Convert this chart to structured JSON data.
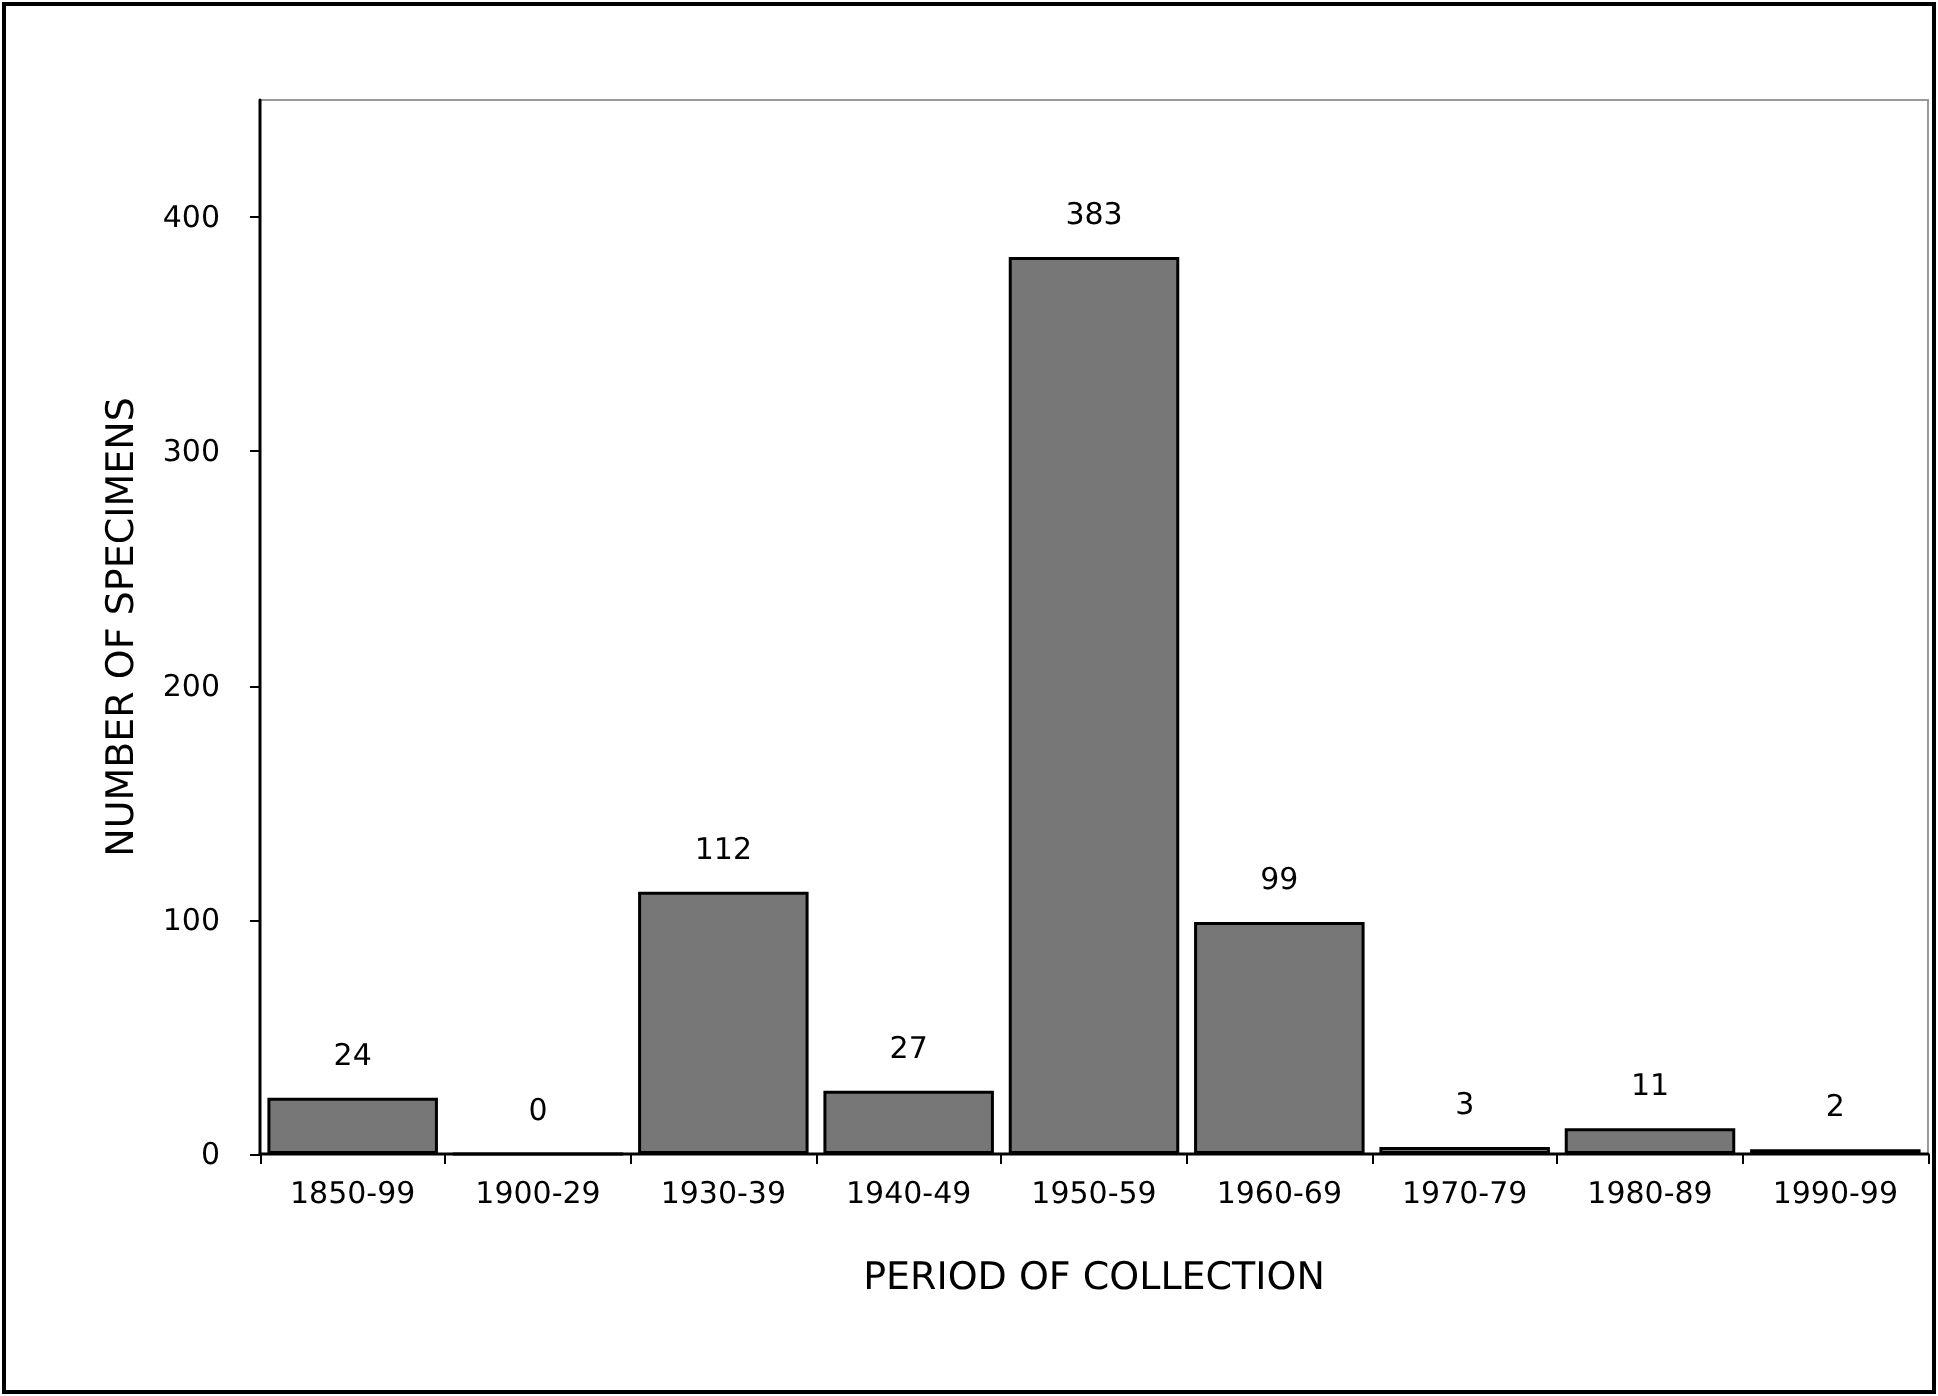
{
  "chart_data": {
    "type": "bar",
    "xlabel": "PERIOD OF COLLECTION",
    "ylabel": "NUMBER OF SPECIMENS",
    "categories": [
      "1850-99",
      "1900-29",
      "1930-39",
      "1940-49",
      "1950-59",
      "1960-69",
      "1970-79",
      "1980-89",
      "1990-99"
    ],
    "values": [
      24,
      0,
      112,
      27,
      383,
      99,
      3,
      11,
      2
    ],
    "color": "#777777",
    "ylim": [
      0,
      450
    ],
    "yticks": [
      0,
      100,
      200,
      300,
      400
    ],
    "grid": false,
    "data_labels": true
  }
}
